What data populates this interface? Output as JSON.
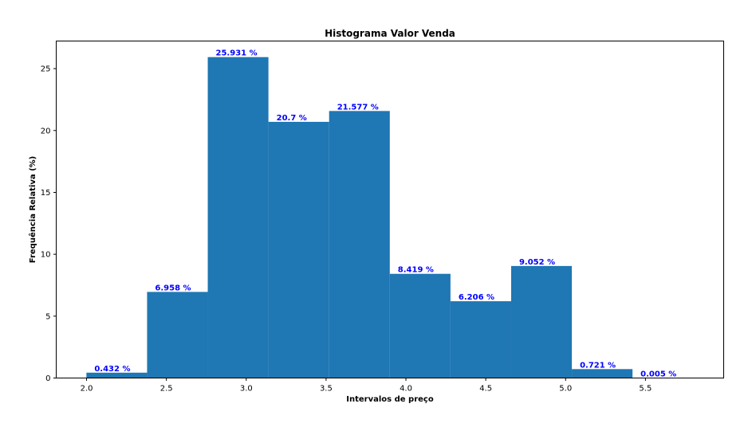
{
  "chart_data": {
    "type": "bar",
    "title": "Histograma Valor Venda",
    "xlabel": "Intervalos de preço",
    "ylabel": "Frequência Relativa (%)",
    "bin_edges": [
      1.999,
      2.379,
      2.759,
      3.139,
      3.519,
      3.899,
      4.279,
      4.659,
      5.039,
      5.419,
      5.799
    ],
    "values": [
      0.432,
      6.958,
      25.931,
      20.7,
      21.577,
      8.419,
      6.206,
      9.052,
      0.721,
      0.005
    ],
    "labels": [
      "0.432 %",
      "6.958 %",
      "25.931 %",
      "20.7 %",
      "21.577 %",
      "8.419 %",
      "6.206 %",
      "9.052 %",
      "0.721 %",
      "0.005 %"
    ],
    "xlim": [
      1.81,
      5.99
    ],
    "ylim": [
      0,
      27.23
    ],
    "xticks": [
      2.0,
      2.5,
      3.0,
      3.5,
      4.0,
      4.5,
      5.0,
      5.5
    ],
    "xtick_labels": [
      "2.0",
      "2.5",
      "3.0",
      "3.5",
      "4.0",
      "4.5",
      "5.0",
      "5.5"
    ],
    "yticks": [
      0,
      5,
      10,
      15,
      20,
      25
    ],
    "ytick_labels": [
      "0",
      "5",
      "10",
      "15",
      "20",
      "25"
    ],
    "bar_color": "#1f77b4",
    "label_color": "#0000ff",
    "grid": false,
    "legend": "none"
  }
}
